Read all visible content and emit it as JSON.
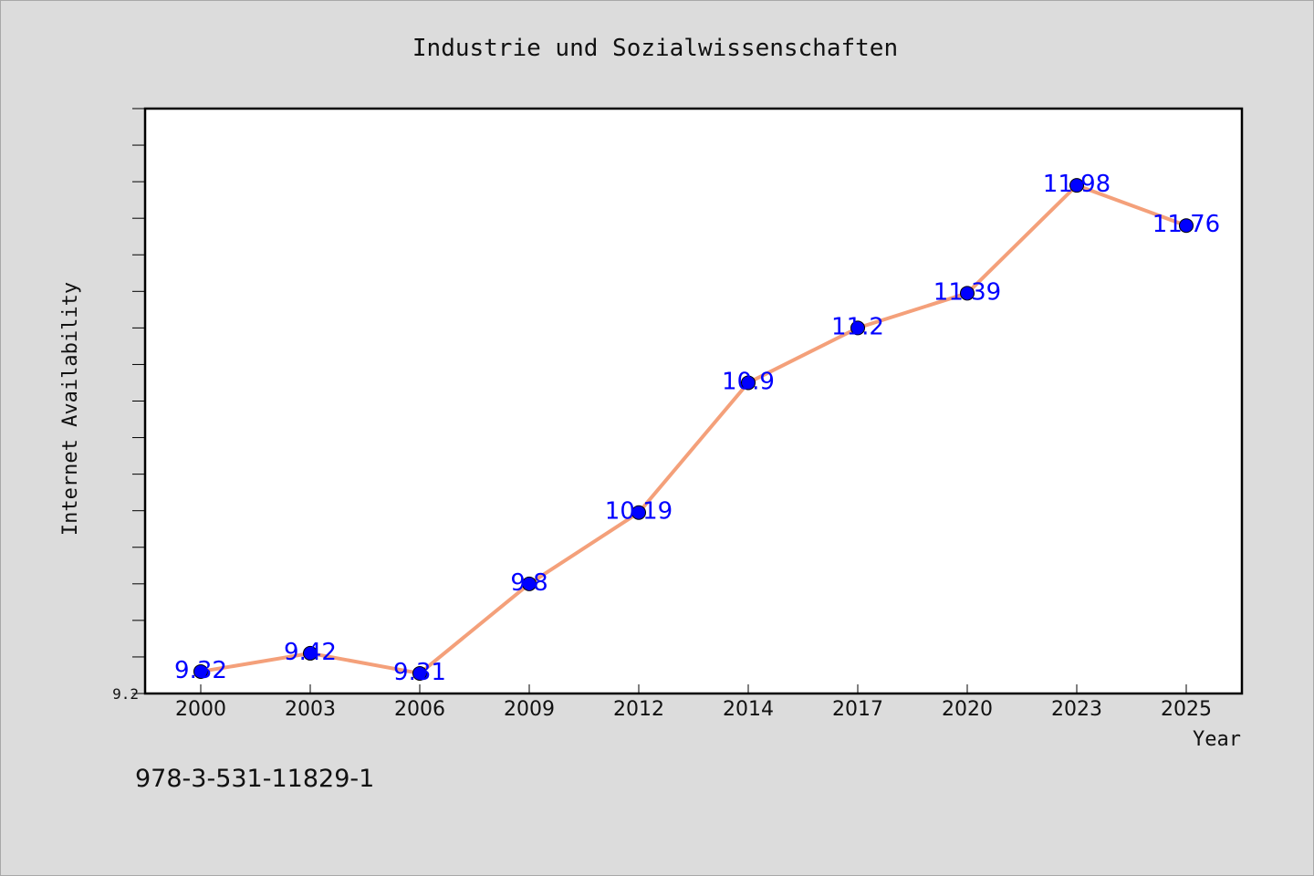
{
  "chart_data": {
    "type": "line",
    "title": "Industrie und Sozialwissenschaften",
    "xlabel": "Year",
    "ylabel": "Internet Availability",
    "categories": [
      "2000",
      "2003",
      "2006",
      "2009",
      "2012",
      "2014",
      "2017",
      "2020",
      "2023",
      "2025"
    ],
    "series": [
      {
        "values": [
          9.32,
          9.42,
          9.31,
          9.8,
          10.19,
          10.9,
          11.2,
          11.39,
          11.98,
          11.76
        ],
        "labels": [
          "9.32",
          "9.42",
          "9.31",
          "9.8",
          "10.19",
          "10.9",
          "11.2",
          "11.39",
          "11.98",
          "11.76"
        ],
        "line_color": "#f4a07a",
        "marker_color": "#0000ff"
      }
    ],
    "ylim": [
      9.2,
      12.4
    ],
    "yticks_labeled": [
      "9.2"
    ],
    "grid": false,
    "legend": "none"
  },
  "footer": {
    "isbn": "978-3-531-11829-1"
  },
  "colors": {
    "background": "#dcdcdc",
    "plot_area": "#ffffff",
    "label": "#0000ff"
  }
}
